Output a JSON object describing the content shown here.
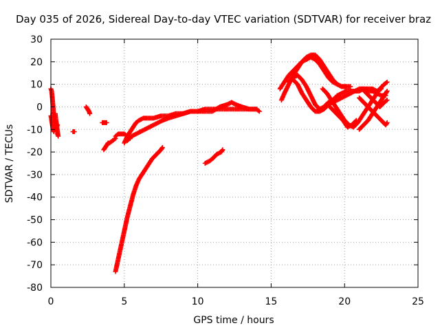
{
  "chart_data": {
    "type": "scatter",
    "title": "Day 035 of 2026, Sidereal Day-to-day VTEC variation (SDTVAR) for receiver braz",
    "xlabel": "GPS time / hours",
    "ylabel": "SDTVAR / TECUs",
    "xlim": [
      0,
      25
    ],
    "ylim": [
      -80,
      30
    ],
    "xticks": [
      0,
      5,
      10,
      15,
      20,
      25
    ],
    "yticks": [
      -80,
      -70,
      -60,
      -50,
      -40,
      -30,
      -20,
      -10,
      0,
      10,
      20,
      30
    ],
    "grid": true,
    "marker": "+",
    "color": "#ff0000",
    "series": [
      {
        "name": "s1",
        "points": [
          [
            0.0,
            8
          ],
          [
            0.05,
            7
          ],
          [
            0.1,
            4
          ],
          [
            0.15,
            0
          ],
          [
            0.2,
            -4
          ],
          [
            0.25,
            -7
          ],
          [
            0.3,
            -9
          ],
          [
            0.35,
            -10
          ],
          [
            0.4,
            -9
          ],
          [
            0.45,
            -8
          ]
        ]
      },
      {
        "name": "s2",
        "points": [
          [
            0.0,
            -4
          ],
          [
            0.05,
            -6
          ],
          [
            0.1,
            -8
          ],
          [
            0.15,
            -10
          ],
          [
            0.2,
            -11
          ],
          [
            0.25,
            -10
          ]
        ]
      },
      {
        "name": "s3",
        "points": [
          [
            0.3,
            -3
          ],
          [
            0.35,
            -6
          ],
          [
            0.4,
            -8
          ],
          [
            0.45,
            -11
          ],
          [
            0.5,
            -13
          ],
          [
            0.45,
            -12
          ]
        ]
      },
      {
        "name": "s4",
        "points": [
          [
            1.5,
            -11
          ],
          [
            1.6,
            -11
          ]
        ]
      },
      {
        "name": "s5",
        "points": [
          [
            2.4,
            0
          ],
          [
            2.5,
            -1
          ],
          [
            2.6,
            -2
          ],
          [
            2.65,
            -3
          ]
        ]
      },
      {
        "name": "s6",
        "points": [
          [
            3.5,
            -7
          ],
          [
            3.6,
            -7
          ],
          [
            3.7,
            -7
          ],
          [
            3.8,
            -7
          ]
        ]
      },
      {
        "name": "s7",
        "points": [
          [
            3.6,
            -19
          ],
          [
            3.7,
            -18
          ],
          [
            3.8,
            -17
          ],
          [
            3.9,
            -16
          ],
          [
            4.0,
            -16
          ],
          [
            4.2,
            -15
          ],
          [
            4.4,
            -14
          ]
        ]
      },
      {
        "name": "s8",
        "points": [
          [
            4.4,
            -13
          ],
          [
            4.6,
            -12
          ],
          [
            4.8,
            -12
          ],
          [
            5.0,
            -12
          ],
          [
            5.2,
            -13
          ],
          [
            5.4,
            -14
          ]
        ]
      },
      {
        "name": "s9",
        "points": [
          [
            5.0,
            -16
          ],
          [
            5.2,
            -13
          ],
          [
            5.4,
            -11
          ],
          [
            5.6,
            -9
          ],
          [
            5.8,
            -7
          ],
          [
            6.0,
            -6
          ],
          [
            6.3,
            -5
          ],
          [
            6.6,
            -5
          ],
          [
            7.0,
            -5
          ],
          [
            7.5,
            -4
          ],
          [
            8.0,
            -4
          ],
          [
            8.5,
            -3
          ],
          [
            9.0,
            -3
          ],
          [
            9.5,
            -2
          ],
          [
            10.0,
            -2
          ],
          [
            10.5,
            -1
          ],
          [
            11.0,
            -1
          ],
          [
            11.5,
            -1
          ],
          [
            12.0,
            -1
          ],
          [
            12.5,
            -1
          ],
          [
            13.0,
            -1
          ],
          [
            13.5,
            -1
          ],
          [
            14.0,
            -1
          ],
          [
            14.2,
            -2
          ]
        ]
      },
      {
        "name": "s10",
        "points": [
          [
            5.2,
            -15
          ],
          [
            5.5,
            -13
          ],
          [
            5.8,
            -12
          ],
          [
            6.1,
            -11
          ],
          [
            6.4,
            -10
          ],
          [
            6.7,
            -9
          ],
          [
            7.0,
            -8
          ],
          [
            7.3,
            -7
          ],
          [
            7.6,
            -6
          ],
          [
            8.0,
            -5
          ],
          [
            8.5,
            -4
          ],
          [
            9.0,
            -3
          ],
          [
            9.5,
            -2
          ],
          [
            10.0,
            -2
          ],
          [
            10.5,
            -2
          ],
          [
            11.0,
            -2
          ],
          [
            11.5,
            0
          ],
          [
            12.0,
            1
          ],
          [
            12.3,
            2
          ],
          [
            12.6,
            1
          ],
          [
            13.0,
            0
          ],
          [
            13.5,
            -1
          ],
          [
            14.0,
            -1
          ]
        ]
      },
      {
        "name": "s11",
        "points": [
          [
            4.4,
            -73
          ],
          [
            4.5,
            -70
          ],
          [
            4.6,
            -67
          ],
          [
            4.8,
            -61
          ],
          [
            5.0,
            -55
          ],
          [
            5.2,
            -49
          ],
          [
            5.4,
            -44
          ],
          [
            5.6,
            -39
          ],
          [
            5.8,
            -35
          ],
          [
            6.0,
            -32
          ],
          [
            6.3,
            -29
          ],
          [
            6.6,
            -26
          ],
          [
            6.9,
            -23
          ],
          [
            7.2,
            -21
          ],
          [
            7.5,
            -19
          ],
          [
            7.6,
            -18
          ]
        ]
      },
      {
        "name": "s12",
        "points": [
          [
            10.5,
            -25
          ],
          [
            10.8,
            -24
          ],
          [
            11.0,
            -23
          ],
          [
            11.3,
            -21
          ],
          [
            11.6,
            -20
          ],
          [
            11.7,
            -19
          ]
        ]
      },
      {
        "name": "s13",
        "points": [
          [
            15.7,
            3
          ],
          [
            15.9,
            6
          ],
          [
            16.2,
            10
          ],
          [
            16.5,
            14
          ],
          [
            16.8,
            17
          ],
          [
            17.1,
            20
          ],
          [
            17.4,
            22
          ],
          [
            17.7,
            23
          ],
          [
            18.0,
            23
          ],
          [
            18.3,
            21
          ],
          [
            18.6,
            18
          ],
          [
            18.9,
            15
          ],
          [
            19.2,
            12
          ],
          [
            19.5,
            10
          ],
          [
            19.8,
            9
          ],
          [
            20.1,
            9
          ],
          [
            20.4,
            9
          ]
        ]
      },
      {
        "name": "s14",
        "points": [
          [
            15.6,
            8
          ],
          [
            15.9,
            11
          ],
          [
            16.2,
            14
          ],
          [
            16.5,
            16
          ],
          [
            16.8,
            18
          ],
          [
            17.1,
            20
          ],
          [
            17.4,
            21
          ],
          [
            17.7,
            22
          ],
          [
            18.0,
            21
          ],
          [
            18.3,
            19
          ],
          [
            18.6,
            16
          ],
          [
            18.9,
            13
          ],
          [
            19.2,
            11
          ],
          [
            19.5,
            10
          ],
          [
            19.8,
            9
          ],
          [
            20.1,
            9
          ]
        ]
      },
      {
        "name": "s15",
        "points": [
          [
            16.5,
            12
          ],
          [
            16.8,
            10
          ],
          [
            17.1,
            6
          ],
          [
            17.4,
            3
          ],
          [
            17.7,
            0
          ],
          [
            18.0,
            -2
          ],
          [
            18.3,
            -2
          ],
          [
            18.6,
            -1
          ],
          [
            18.9,
            1
          ],
          [
            19.2,
            2
          ],
          [
            19.5,
            3
          ],
          [
            19.8,
            4
          ],
          [
            20.1,
            5
          ],
          [
            20.4,
            6
          ],
          [
            20.7,
            7
          ],
          [
            21.0,
            8
          ],
          [
            21.3,
            8
          ],
          [
            21.6,
            7
          ],
          [
            21.9,
            7
          ],
          [
            22.2,
            6
          ],
          [
            22.5,
            5
          ],
          [
            22.8,
            5
          ]
        ]
      },
      {
        "name": "s16",
        "points": [
          [
            16.2,
            11
          ],
          [
            16.5,
            13
          ],
          [
            16.8,
            14
          ],
          [
            17.1,
            12
          ],
          [
            17.4,
            9
          ],
          [
            17.7,
            5
          ],
          [
            18.0,
            1
          ],
          [
            18.3,
            -1
          ],
          [
            18.6,
            0
          ],
          [
            18.9,
            2
          ],
          [
            19.2,
            3
          ],
          [
            19.5,
            5
          ],
          [
            19.8,
            6
          ],
          [
            20.1,
            7
          ],
          [
            20.4,
            7
          ],
          [
            20.7,
            7
          ],
          [
            21.0,
            7
          ],
          [
            21.3,
            8
          ],
          [
            21.6,
            8
          ],
          [
            21.9,
            8
          ],
          [
            22.2,
            7
          ],
          [
            22.5,
            8
          ]
        ]
      },
      {
        "name": "s17",
        "points": [
          [
            18.5,
            8
          ],
          [
            18.8,
            6
          ],
          [
            19.1,
            3
          ],
          [
            19.4,
            0
          ],
          [
            19.7,
            -3
          ],
          [
            20.0,
            -6
          ],
          [
            20.3,
            -8
          ],
          [
            20.6,
            -9
          ],
          [
            20.9,
            -7
          ],
          [
            21.2,
            -4
          ],
          [
            21.5,
            -1
          ],
          [
            21.8,
            2
          ],
          [
            22.1,
            5
          ],
          [
            22.4,
            8
          ],
          [
            22.7,
            10
          ],
          [
            22.9,
            11
          ]
        ]
      },
      {
        "name": "s18",
        "points": [
          [
            19.0,
            0
          ],
          [
            19.3,
            -2
          ],
          [
            19.6,
            -4
          ],
          [
            19.9,
            -6
          ],
          [
            20.2,
            -9
          ],
          [
            20.5,
            -8
          ],
          [
            20.8,
            -6
          ]
        ]
      },
      {
        "name": "s19",
        "points": [
          [
            21.0,
            -10
          ],
          [
            21.3,
            -8
          ],
          [
            21.6,
            -6
          ],
          [
            21.9,
            -3
          ],
          [
            22.2,
            0
          ],
          [
            22.5,
            3
          ],
          [
            22.8,
            6
          ],
          [
            22.9,
            7
          ]
        ]
      },
      {
        "name": "s20",
        "points": [
          [
            21.0,
            4
          ],
          [
            21.3,
            2
          ],
          [
            21.6,
            0
          ],
          [
            21.9,
            -2
          ],
          [
            22.2,
            -4
          ],
          [
            22.5,
            -6
          ],
          [
            22.8,
            -8
          ],
          [
            22.9,
            -7
          ]
        ]
      },
      {
        "name": "s21",
        "points": [
          [
            21.2,
            8
          ],
          [
            21.5,
            6
          ],
          [
            21.8,
            4
          ],
          [
            22.1,
            2
          ],
          [
            22.4,
            0
          ],
          [
            22.7,
            2
          ],
          [
            22.9,
            3
          ]
        ]
      }
    ]
  }
}
